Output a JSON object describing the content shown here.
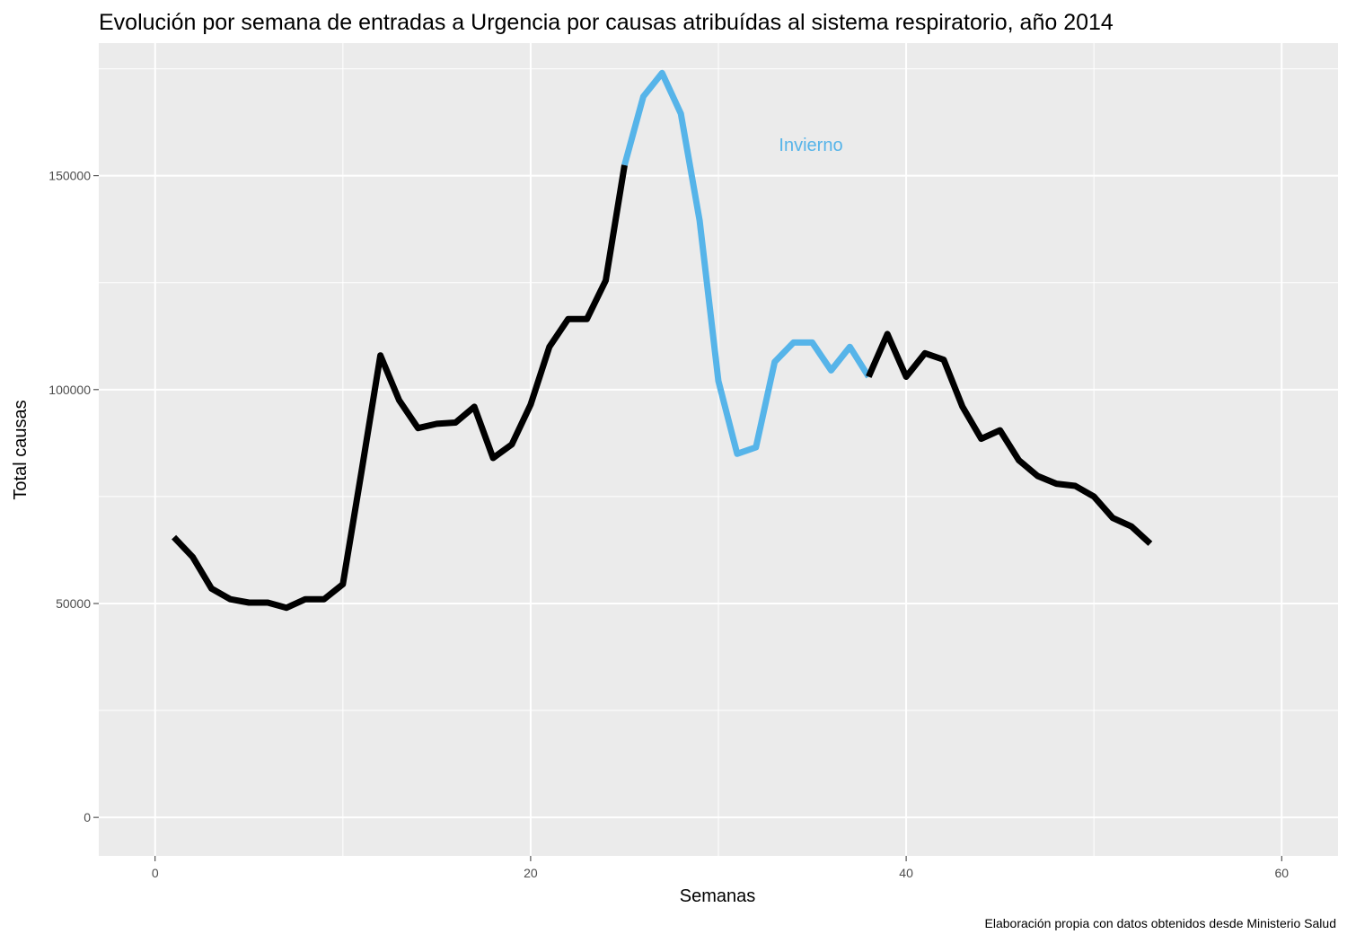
{
  "chart_data": {
    "type": "line",
    "title": "Evolución por semana de entradas a Urgencia por causas atribuídas al sistema respiratorio, año 2014",
    "xlabel": "Semanas",
    "ylabel": "Total causas",
    "caption": "Elaboración propia con datos obtenidos desde Ministerio Salud",
    "annotation": "Invierno",
    "xlim": [
      -3,
      63
    ],
    "ylim": [
      -9000,
      181000
    ],
    "x_ticks": [
      0,
      20,
      40,
      60
    ],
    "y_ticks": [
      0,
      50000,
      100000,
      150000
    ],
    "x_tick_labels": [
      "0",
      "20",
      "40",
      "60"
    ],
    "y_tick_labels": [
      "0",
      "50000",
      "100000",
      "150000"
    ],
    "grid": true,
    "colors": {
      "panel_background": "#ebebeb",
      "grid": "#ffffff",
      "default_line": "#000000",
      "winter_line": "#56b4e9"
    },
    "segments": [
      {
        "color": "#000000",
        "x": [
          1,
          2,
          3,
          4,
          5,
          6,
          7,
          8,
          9,
          10,
          11,
          12,
          13,
          14,
          15,
          16,
          17,
          18,
          19,
          20,
          21,
          22,
          23,
          24,
          25
        ],
        "y": [
          65500,
          60900,
          53500,
          51000,
          50200,
          50200,
          49000,
          51000,
          51000,
          54500,
          81000,
          108000,
          97500,
          91000,
          92000,
          92300,
          96000,
          84000,
          87200,
          96500,
          110000,
          116500,
          116500,
          125500,
          152500
        ]
      },
      {
        "color": "#56b4e9",
        "x": [
          25,
          26,
          27,
          28,
          29,
          30,
          31,
          32,
          33,
          34,
          35,
          36,
          37,
          38
        ],
        "y": [
          152500,
          168500,
          174000,
          164500,
          139500,
          102000,
          85000,
          86500,
          106500,
          111000,
          111000,
          104500,
          110000,
          103000
        ]
      },
      {
        "color": "#000000",
        "x": [
          38,
          39,
          40,
          41,
          42,
          43,
          44,
          45,
          46,
          47,
          48,
          49,
          50,
          51,
          52,
          53
        ],
        "y": [
          103000,
          113000,
          103000,
          108500,
          107000,
          96000,
          88500,
          90500,
          83500,
          79800,
          78000,
          77500,
          75000,
          70000,
          68000,
          64000
        ]
      }
    ]
  }
}
